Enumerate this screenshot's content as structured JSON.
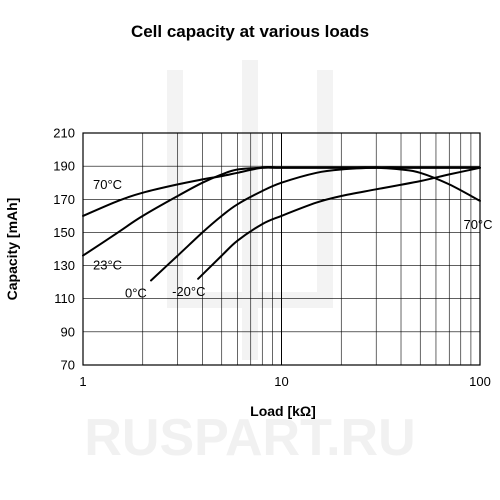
{
  "watermark": "RUSPART.RU",
  "chart_data": {
    "type": "line",
    "title": "Cell capacity at various loads",
    "xlabel": "Load [kΩ]",
    "ylabel": "Capacity [mAh]",
    "xscale": "log",
    "xlim": [
      1,
      100
    ],
    "ylim": [
      70,
      210
    ],
    "xticks": [
      "1",
      "10",
      "100"
    ],
    "yticks": [
      "70",
      "90",
      "110",
      "130",
      "150",
      "170",
      "190",
      "210"
    ],
    "grid": true,
    "legend": "none",
    "series": [
      {
        "name": "70°C",
        "label_pos": "left",
        "x": [
          1,
          1.5,
          2,
          3,
          4,
          5,
          6,
          8,
          10,
          20,
          30,
          40,
          50,
          70,
          100
        ],
        "y": [
          160,
          169,
          174,
          179,
          182,
          184,
          186,
          189,
          189,
          189,
          189,
          188,
          186,
          179,
          169
        ]
      },
      {
        "name": "23°C",
        "label_pos": "left",
        "x": [
          1,
          1.5,
          2,
          3,
          4,
          5,
          6,
          8,
          10,
          20,
          30,
          50,
          100
        ],
        "y": [
          136,
          150,
          160,
          172,
          180,
          185,
          188,
          189,
          189,
          189,
          189,
          189,
          189
        ]
      },
      {
        "name": "0°C",
        "label_pos": "start",
        "x": [
          2.2,
          3,
          4,
          5,
          6,
          8,
          10,
          15,
          20,
          30,
          50,
          100
        ],
        "y": [
          121,
          136,
          150,
          160,
          167,
          175,
          180,
          186,
          188,
          189,
          189,
          189
        ]
      },
      {
        "name": "-20°C",
        "label_pos": "start",
        "x": [
          3.8,
          5,
          6,
          8,
          10,
          15,
          20,
          30,
          50,
          70,
          100
        ],
        "y": [
          122,
          136,
          145,
          155,
          160,
          168,
          172,
          176,
          181,
          185,
          189
        ]
      }
    ],
    "annotations": [
      {
        "text": "70°C",
        "x": 100,
        "y": 169
      }
    ]
  }
}
